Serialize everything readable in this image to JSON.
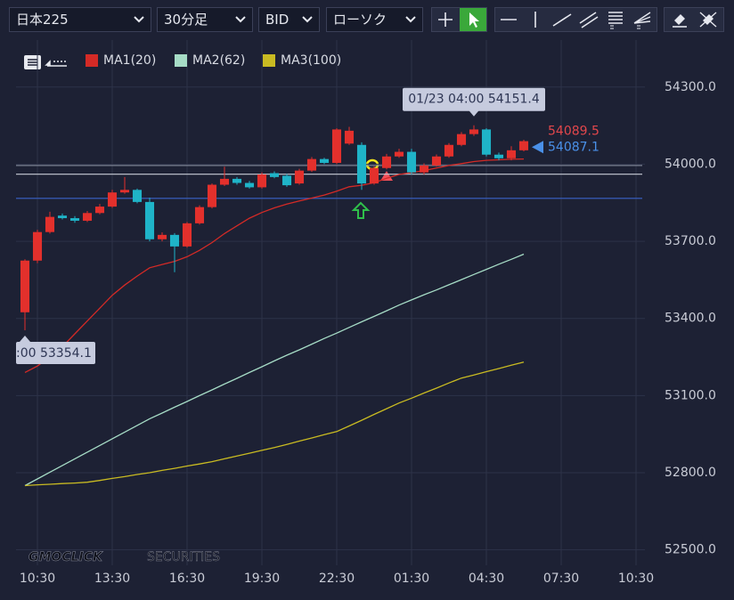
{
  "toolbar": {
    "dropdowns": [
      "日本225",
      "30分足",
      "BID",
      "ローソク"
    ]
  },
  "chart_data": {
    "type": "candlestick",
    "series": [
      {
        "name": "MA1(20)",
        "color": "#d42a26",
        "values": [
          53190,
          53215,
          53250,
          53290,
          53340,
          53390,
          53440,
          53490,
          53530,
          53565,
          53597,
          53610,
          53622,
          53640,
          53665,
          53695,
          53730,
          53760,
          53790,
          53812,
          53830,
          53845,
          53857,
          53868,
          53880,
          53895,
          53912,
          53918,
          53928,
          53945,
          53960,
          53967,
          53975,
          53985,
          53995,
          54002,
          54010,
          54015,
          54017,
          54019,
          54020
        ]
      },
      {
        "name": "MA2(62)",
        "color": "#a6dcc6",
        "values": [
          52750,
          52776,
          52802,
          52828,
          52854,
          52880,
          52906,
          52932,
          52958,
          52984,
          53010,
          53032,
          53055,
          53077,
          53100,
          53122,
          53145,
          53167,
          53190,
          53212,
          53235,
          53257,
          53278,
          53300,
          53322,
          53343,
          53365,
          53387,
          53408,
          53430,
          53452,
          53472,
          53492,
          53511,
          53531,
          53551,
          53571,
          53591,
          53611,
          53630,
          53650
        ]
      },
      {
        "name": "MA3(100)",
        "color": "#c9bb22",
        "values": [
          52750,
          52753,
          52755,
          52758,
          52760,
          52763,
          52770,
          52778,
          52785,
          52793,
          52800,
          52809,
          52817,
          52826,
          52834,
          52843,
          52854,
          52865,
          52876,
          52887,
          52898,
          52910,
          52923,
          52935,
          52948,
          52960,
          52982,
          53004,
          53027,
          53049,
          53071,
          53090,
          53110,
          53129,
          53149,
          53168,
          53180,
          53193,
          53205,
          53218,
          53230
        ]
      }
    ],
    "x": [
      0,
      1,
      2,
      3,
      4,
      5,
      6,
      7,
      8,
      9,
      10,
      11,
      12,
      13,
      14,
      15,
      16,
      17,
      18,
      19,
      20,
      21,
      22,
      23,
      24,
      25,
      26,
      27,
      28,
      29,
      30,
      31,
      32,
      33,
      34,
      35,
      36,
      37,
      38,
      39,
      40
    ],
    "open": [
      53424,
      53625,
      53736,
      53800,
      53790,
      53780,
      53810,
      53835,
      53890,
      53900,
      53853,
      53708,
      53725,
      53680,
      53770,
      53833,
      53920,
      53943,
      53927,
      53910,
      53965,
      53955,
      53925,
      53975,
      54020,
      54005,
      54080,
      54075,
      53925,
      53985,
      54030,
      54048,
      53968,
      53995,
      54030,
      54075,
      54117,
      54135,
      54037,
      54023,
      54054
    ],
    "high": [
      53630,
      53745,
      53815,
      53808,
      53798,
      53818,
      53845,
      53900,
      53950,
      53905,
      53870,
      53735,
      53732,
      53775,
      53840,
      53925,
      53990,
      53950,
      53935,
      53968,
      53972,
      53962,
      53982,
      54028,
      54025,
      54140,
      54145,
      54085,
      53992,
      54040,
      54060,
      54060,
      54003,
      54038,
      54082,
      54125,
      54151.4,
      54140,
      54045,
      54070,
      54095
    ],
    "low": [
      53354.1,
      53615,
      53730,
      53785,
      53772,
      53775,
      53805,
      53830,
      53885,
      53848,
      53700,
      53700,
      53580,
      53675,
      53765,
      53828,
      53915,
      53920,
      53905,
      53905,
      53945,
      53912,
      53920,
      53970,
      54000,
      54000,
      54075,
      53900,
      53920,
      53980,
      54025,
      53960,
      53960,
      53990,
      54025,
      54070,
      54110,
      54030,
      54015,
      54015,
      54050
    ],
    "close": [
      53625,
      53736,
      53795,
      53790,
      53780,
      53810,
      53835,
      53890,
      53900,
      53853,
      53708,
      53725,
      53680,
      53770,
      53833,
      53920,
      53943,
      53927,
      53910,
      53960,
      53950,
      53918,
      53975,
      54020,
      54005,
      54135,
      54130,
      53925,
      53985,
      54030,
      54048,
      53968,
      53995,
      54030,
      54075,
      54117,
      54135,
      54037,
      54023,
      54054,
      54089.5
    ],
    "up_color": "#e3302c",
    "down_color": "#1fb4c8",
    "xlim": [
      -0.5,
      49.5
    ],
    "xticks": [
      {
        "value": 1,
        "label": "10:30"
      },
      {
        "value": 7,
        "label": "13:30"
      },
      {
        "value": 13,
        "label": "16:30"
      },
      {
        "value": 19,
        "label": "19:30"
      },
      {
        "value": 25,
        "label": "22:30"
      },
      {
        "value": 31,
        "label": "01:30"
      },
      {
        "value": 37,
        "label": "04:30"
      },
      {
        "value": 43,
        "label": "07:30"
      },
      {
        "value": 49,
        "label": "10:30"
      }
    ],
    "ylim": [
      52440,
      54500
    ],
    "yticks": [
      {
        "value": 52500,
        "label": "52500.0"
      },
      {
        "value": 52800,
        "label": "52800.0"
      },
      {
        "value": 53100,
        "label": "53100.0"
      },
      {
        "value": 53400,
        "label": "53400.0"
      },
      {
        "value": 53700,
        "label": "53700.0"
      },
      {
        "value": 54000,
        "label": "54000.0"
      },
      {
        "value": 54300,
        "label": "54300.0"
      }
    ],
    "grid": true,
    "lines": [
      {
        "value": 53995,
        "color": "#7d8294"
      },
      {
        "value": 53961,
        "color": "#c9ccd6"
      },
      {
        "value": 53867,
        "color": "#3a62c8"
      }
    ],
    "price_labels": [
      {
        "value": 54089.5,
        "color": "#e2474c"
      },
      {
        "value": 54087.1,
        "color": "#4a90e8"
      }
    ],
    "high_label": "01/23 04:00 54151.4",
    "low_label": ":00 53354.1",
    "watermark": [
      "GMOCLICK",
      "SECURITIES"
    ]
  }
}
